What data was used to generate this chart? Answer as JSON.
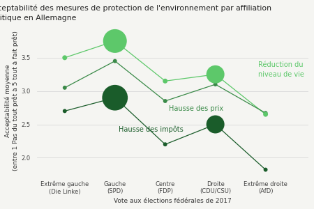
{
  "title": "Acceptabilité des mesures de protection de l'environnement par affiliation\npolitique en Allemagne",
  "xlabel": "Vote aux élections fédérales de 2017",
  "ylabel": "Acceptabilité moyenne\n(entre 1 Pas du tout prêt à 5 tout à fait prêt)",
  "categories": [
    "Extrême gauche\n(Die Linke)",
    "Gauche\n(SPD)",
    "Centre\n(FDP)",
    "Droite\n(CDU/CSU)",
    "Extrême droite\n(AfD)"
  ],
  "reduction_values": [
    3.5,
    3.75,
    3.15,
    3.25,
    2.65
  ],
  "reduction_sizes": [
    25,
    600,
    25,
    350,
    25
  ],
  "prix_values": [
    3.05,
    3.45,
    2.85,
    3.1,
    2.67
  ],
  "prix_sizes": [
    18,
    18,
    18,
    18,
    18
  ],
  "impots_values": [
    2.7,
    2.9,
    2.2,
    2.5,
    1.82
  ],
  "impots_sizes": [
    18,
    700,
    18,
    350,
    18
  ],
  "light_green": "#5dc86a",
  "dark_green": "#1a5c2a",
  "mid_green": "#3a8a48",
  "ylim": [
    1.75,
    3.95
  ],
  "yticks": [
    2.0,
    2.5,
    3.0,
    3.5
  ],
  "bg_color": "#f5f5f2",
  "grid_color": "#d8d8d8",
  "title_fontsize": 7.8,
  "label_fontsize": 6.5,
  "tick_fontsize": 6.0,
  "annot_fontsize": 7.0
}
